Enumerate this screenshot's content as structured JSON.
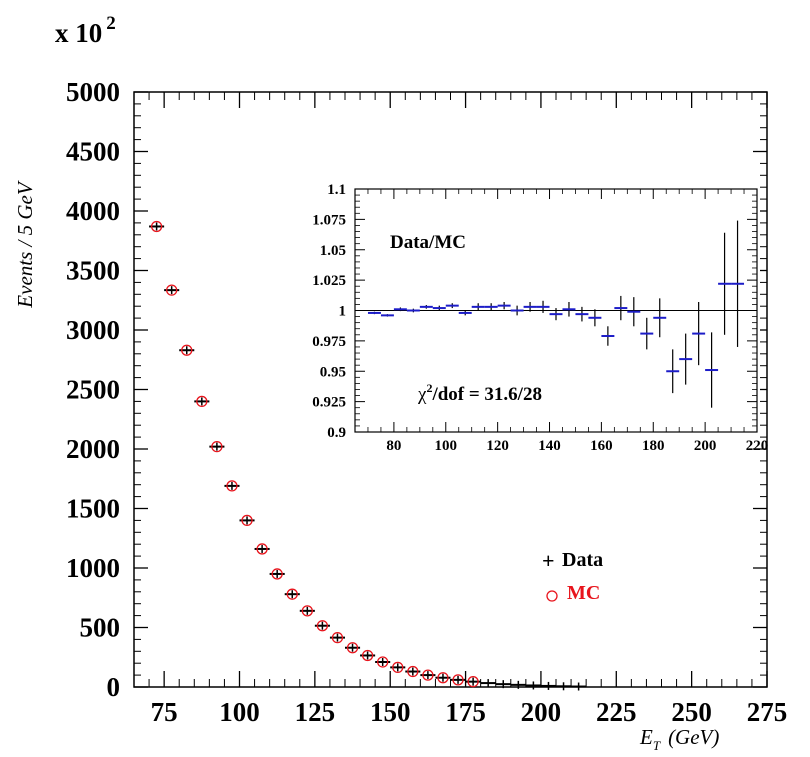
{
  "chart_data": [
    {
      "type": "scatter",
      "multiplier": "x 10",
      "multiplier_exp": "2",
      "xlabel_main": "E",
      "xlabel_sub": "T",
      "xlabel_unit": "(GeV)",
      "ylabel": "Events / 5 GeV",
      "xlim": [
        65,
        275
      ],
      "ylim": [
        0,
        5000
      ],
      "x_ticks": [
        "75",
        "100",
        "125",
        "150",
        "175",
        "200",
        "225",
        "250",
        "275"
      ],
      "y_ticks": [
        "0",
        "500",
        "1000",
        "1500",
        "2000",
        "2500",
        "3000",
        "3500",
        "4000",
        "4500",
        "5000"
      ],
      "legend": {
        "position": "right",
        "data_marker": "+",
        "data_label": "Data",
        "mc_label": "MC"
      },
      "colors": {
        "data": "#000000",
        "mc": "#e8141c"
      },
      "series": [
        {
          "name": "Data",
          "x": [
            72.5,
            77.5,
            82.5,
            87.5,
            92.5,
            97.5,
            102.5,
            107.5,
            112.5,
            117.5,
            122.5,
            127.5,
            132.5,
            137.5,
            142.5,
            147.5,
            152.5,
            157.5,
            162.5,
            167.5,
            172.5,
            177.5,
            182.5,
            187.5,
            192.5,
            197.5,
            202.5,
            207.5,
            212.5
          ],
          "y": [
            3870,
            3335,
            2830,
            2400,
            2020,
            1690,
            1400,
            1160,
            950,
            780,
            640,
            515,
            415,
            330,
            265,
            210,
            165,
            130,
            100,
            78,
            60,
            45,
            33,
            24,
            18,
            13,
            9,
            6,
            4
          ]
        },
        {
          "name": "MC",
          "x": [
            72.5,
            77.5,
            82.5,
            87.5,
            92.5,
            97.5,
            102.5,
            107.5,
            112.5,
            117.5,
            122.5,
            127.5,
            132.5,
            137.5,
            142.5,
            147.5,
            152.5,
            157.5,
            162.5,
            167.5,
            172.5,
            177.5
          ],
          "y": [
            3870,
            3335,
            2830,
            2400,
            2020,
            1690,
            1400,
            1160,
            950,
            780,
            640,
            515,
            415,
            330,
            265,
            210,
            165,
            130,
            100,
            78,
            60,
            45
          ]
        }
      ]
    },
    {
      "type": "scatter",
      "title": "Data/MC",
      "annotation": {
        "chi": "χ",
        "exp": "2",
        "rest": "/dof = 31.6/28"
      },
      "xlim": [
        65,
        220
      ],
      "ylim": [
        0.9,
        1.1
      ],
      "x_ticks": [
        "80",
        "100",
        "120",
        "140",
        "160",
        "180",
        "200",
        "220"
      ],
      "y_ticks": [
        "0.9",
        "0.925",
        "0.95",
        "0.975",
        "1",
        "1.025",
        "1.05",
        "1.075",
        "1.1"
      ],
      "reference_line": 1,
      "colors": {
        "marker": "#1c1cc8",
        "error": "#000000"
      },
      "series": [
        {
          "name": "Data/MC",
          "x": [
            72.5,
            77.5,
            82.5,
            87.5,
            92.5,
            97.5,
            102.5,
            107.5,
            112.5,
            117.5,
            122.5,
            127.5,
            132.5,
            137.5,
            142.5,
            147.5,
            152.5,
            157.5,
            162.5,
            167.5,
            172.5,
            177.5,
            182.5,
            187.5,
            192.5,
            197.5,
            202.5,
            207.5,
            212.5
          ],
          "y": [
            0.998,
            0.996,
            1.001,
            1.0,
            1.003,
            1.002,
            1.004,
            0.998,
            1.003,
            1.003,
            1.004,
            1.0,
            1.003,
            1.003,
            0.997,
            1.001,
            0.997,
            0.994,
            0.979,
            1.002,
            0.999,
            0.981,
            0.994,
            0.95,
            0.96,
            0.981,
            0.951,
            1.022,
            1.022
          ],
          "err": [
            0.001,
            0.001,
            0.0015,
            0.0015,
            0.0015,
            0.002,
            0.002,
            0.002,
            0.003,
            0.003,
            0.003,
            0.004,
            0.004,
            0.005,
            0.005,
            0.006,
            0.006,
            0.007,
            0.008,
            0.01,
            0.012,
            0.013,
            0.016,
            0.018,
            0.021,
            0.026,
            0.031,
            0.042,
            0.052
          ]
        }
      ]
    }
  ]
}
